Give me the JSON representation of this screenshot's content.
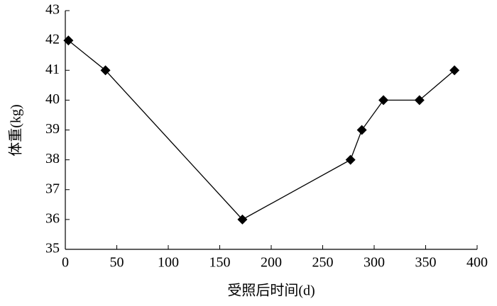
{
  "chart_data": {
    "type": "line",
    "x_label": "受照后时间(d)",
    "y_label": "体重(kg)",
    "x": [
      3,
      39,
      172,
      277,
      288,
      309,
      344,
      378
    ],
    "series": [
      {
        "color": "#000000",
        "values": [
          42,
          41,
          36,
          38,
          39,
          40,
          40,
          41
        ]
      }
    ],
    "xlim": [
      0,
      400
    ],
    "xticks": [
      0,
      50,
      100,
      150,
      200,
      250,
      300,
      350,
      400
    ],
    "ylim": [
      35,
      43
    ],
    "yticks": [
      35,
      36,
      37,
      38,
      39,
      40,
      41,
      42,
      43
    ],
    "grid": false
  }
}
